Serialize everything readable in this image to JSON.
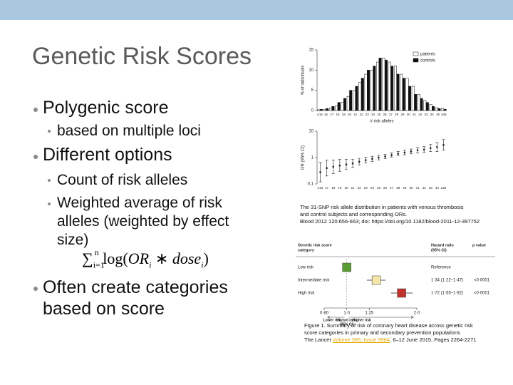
{
  "header": {
    "title": "Genetic Risk Scores"
  },
  "bullets": [
    {
      "level": 1,
      "text": "Polygenic score"
    },
    {
      "level": 2,
      "text": "based on multiple loci"
    },
    {
      "level": 1,
      "text": "Different options"
    },
    {
      "level": 2,
      "text": "Count of risk alleles"
    },
    {
      "level": 2,
      "text": "Weighted average of risk alleles (weighted by effect size)"
    },
    {
      "level": 1,
      "text": "Often create categories based on score"
    }
  ],
  "formula": [
    "∑",
    "i=1",
    "n",
    "log(",
    "OR",
    "i",
    " ∗ ",
    "dose",
    "i",
    ")"
  ],
  "chart_data": [
    {
      "type": "bar",
      "ylabel": "% of individuals",
      "xlabel": "# risk alleles",
      "categories": [
        "≤15",
        "16",
        "17",
        "18",
        "19",
        "20",
        "21",
        "22",
        "23",
        "24",
        "25",
        "26",
        "27",
        "28",
        "29",
        "30",
        "31",
        "32",
        "33",
        "34",
        "35",
        "≥36"
      ],
      "series": [
        {
          "name": "patients",
          "color": "#ffffff",
          "values": [
            0.2,
            0.3,
            0.6,
            1.2,
            2,
            3.5,
            5,
            7,
            9,
            10,
            12,
            13,
            12,
            11,
            9,
            8,
            6,
            4,
            2.5,
            1.5,
            0.7,
            0.5
          ]
        },
        {
          "name": "controls",
          "color": "#111111",
          "values": [
            0.3,
            0.5,
            1,
            2,
            3,
            5,
            6,
            8,
            10,
            11,
            13,
            12.5,
            11,
            9,
            8,
            6,
            4,
            3,
            2,
            1,
            0.5,
            0.3
          ]
        }
      ],
      "ylim": [
        0,
        15
      ],
      "yticks": [
        0,
        5,
        10,
        15
      ]
    },
    {
      "type": "errorbar",
      "ylabel": "OR (95% CI)",
      "log_scale": true,
      "categories": [
        "≤16",
        "17",
        "18",
        "19",
        "20",
        "21",
        "22",
        "23",
        "24",
        "25",
        "26",
        "27",
        "28",
        "29",
        "30",
        "31",
        "32",
        "33",
        "34",
        "≥35"
      ],
      "values": [
        0.28,
        0.4,
        0.45,
        0.5,
        0.55,
        0.6,
        0.7,
        0.8,
        0.9,
        1,
        1.1,
        1.25,
        1.4,
        1.55,
        1.7,
        1.9,
        2,
        2.3,
        2.5,
        3
      ],
      "ci_low": [
        0.12,
        0.2,
        0.25,
        0.3,
        0.35,
        0.42,
        0.52,
        0.62,
        0.72,
        0.82,
        0.92,
        1.05,
        1.15,
        1.28,
        1.38,
        1.5,
        1.55,
        1.7,
        1.7,
        1.9
      ],
      "ci_high": [
        0.65,
        0.8,
        0.8,
        0.85,
        0.85,
        0.87,
        0.94,
        1.03,
        1.12,
        1.22,
        1.32,
        1.49,
        1.7,
        1.88,
        2.1,
        2.4,
        2.6,
        3.1,
        3.7,
        4.8
      ],
      "ylim": [
        0.1,
        10
      ],
      "yticks": [
        0.1,
        1,
        10
      ],
      "caption": [
        "The 31-SNP risk allele distribution in patients with venous thrombosis",
        "and control subjects and corresponding ORs.",
        "Blood 2012 120:656-663; doi: https://doi.org/10.1182/blood-2011-12-397752"
      ]
    },
    {
      "type": "forest",
      "header": [
        "Genetic risk score",
        "category"
      ],
      "hr_header": [
        "Hazard ratio",
        "(95% CI)"
      ],
      "p_header": "p value",
      "categories": [
        "Low risk",
        "Intermediate risk",
        "High risk"
      ],
      "colors": [
        "#5a9e2f",
        "#f6e7a8",
        "#c0312b"
      ],
      "values": [
        1,
        1.34,
        1.72
      ],
      "ci_low": [
        null,
        1.22,
        1.55
      ],
      "ci_high": [
        null,
        1.47,
        1.92
      ],
      "hr_labels": [
        "Reference",
        "1·34 (1·22–1·47)",
        "1·72 (1·55–1·92)"
      ],
      "p_labels": [
        null,
        "<0·0001",
        "<0·0001"
      ],
      "xlim": [
        0.8,
        2
      ],
      "xticks": [
        {
          "value": 0.8,
          "label": "0·80"
        },
        {
          "value": 1,
          "label": "1·0"
        },
        1.25,
        {
          "value": 2,
          "label": "2·0"
        }
      ],
      "xlabel": [
        "Hazard ratio",
        "(95% CI)"
      ],
      "lower_label": "Lower risk",
      "higher_label": "Higher risk",
      "caption": [
        "Figure 1. Summary of risk of coronary heart disease across genetic risk",
        "score categories in primary and secondary prevention populations"
      ],
      "caption_source": [
        "The Lancet ",
        "Volume 385, Issue 9984",
        ", 6–12 June 2015, Pages 2264-2271"
      ]
    }
  ]
}
